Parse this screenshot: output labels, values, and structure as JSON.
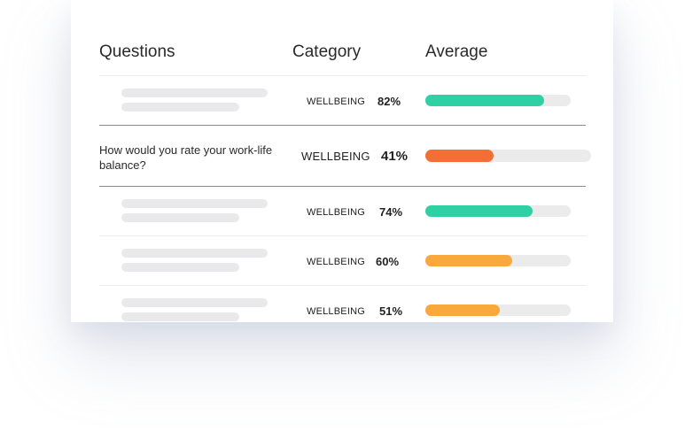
{
  "headers": {
    "questions": "Questions",
    "category": "Category",
    "average": "Average"
  },
  "colors": {
    "green": "#2fd0a3",
    "orange_red": "#f36f35",
    "orange": "#f9a83b",
    "track": "#ebebeb"
  },
  "rows": [
    {
      "question": "",
      "category": "WELLBEING",
      "average_label": "82%",
      "average": 0.82,
      "color": "#2fd0a3"
    },
    {
      "question": "How would you rate your work-life balance?",
      "category": "WELLBEING",
      "average_label": "41%",
      "average": 0.41,
      "color": "#f36f35"
    },
    {
      "question": "",
      "category": "WELLBEING",
      "average_label": "74%",
      "average": 0.74,
      "color": "#2fd0a3"
    },
    {
      "question": "",
      "category": "WELLBEING",
      "average_label": "60%",
      "average": 0.6,
      "color": "#f9a83b"
    },
    {
      "question": "",
      "category": "WELLBEING",
      "average_label": "51%",
      "average": 0.51,
      "color": "#f9a83b"
    }
  ]
}
